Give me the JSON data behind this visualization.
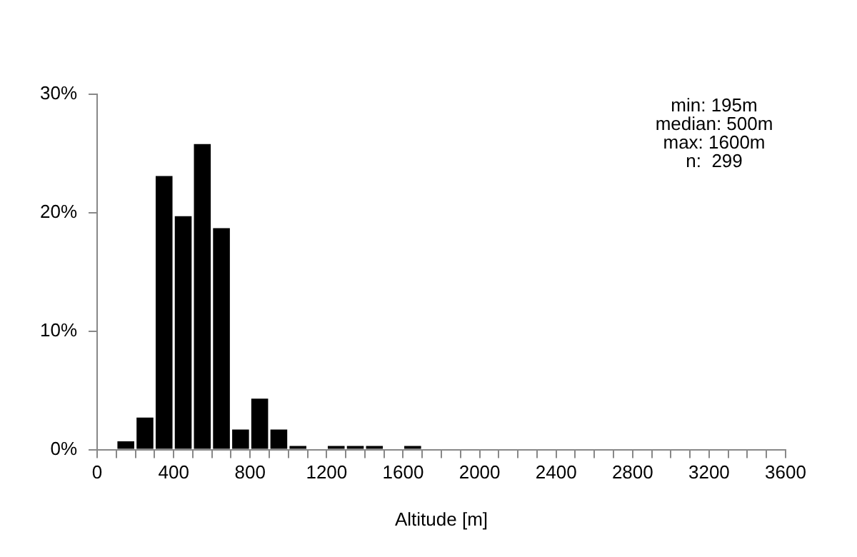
{
  "chart_data": {
    "type": "histogram",
    "xlabel": "Altitude [m]",
    "bins": [
      0,
      100,
      200,
      300,
      400,
      500,
      600,
      700,
      800,
      900,
      1000,
      1100,
      1200,
      1300,
      1400,
      1500,
      1600,
      1700,
      1800,
      1900,
      2000,
      2100,
      2200,
      2300,
      2400,
      2500,
      2600,
      2700,
      2800,
      2900,
      3000,
      3100,
      3200,
      3300,
      3400,
      3500,
      3600
    ],
    "values": [
      0,
      0.7,
      2.7,
      23.1,
      19.7,
      25.8,
      18.7,
      1.7,
      4.3,
      1.7,
      0.3,
      0,
      0.3,
      0.3,
      0.3,
      0,
      0.3,
      0,
      0,
      0,
      0,
      0,
      0,
      0,
      0,
      0,
      0,
      0,
      0,
      0,
      0,
      0,
      0,
      0,
      0,
      0
    ],
    "color": "#000000",
    "xlim": [
      0,
      3600
    ],
    "xticks": [
      0,
      {
        "value": 100,
        "label": null
      },
      {
        "value": 200,
        "label": null
      },
      {
        "value": 300,
        "label": null
      },
      400,
      {
        "value": 500,
        "label": null
      },
      {
        "value": 600,
        "label": null
      },
      {
        "value": 700,
        "label": null
      },
      800,
      {
        "value": 900,
        "label": null
      },
      {
        "value": 1000,
        "label": null
      },
      {
        "value": 1100,
        "label": null
      },
      1200,
      {
        "value": 1300,
        "label": null
      },
      {
        "value": 1400,
        "label": null
      },
      {
        "value": 1500,
        "label": null
      },
      1600,
      {
        "value": 1700,
        "label": null
      },
      {
        "value": 1800,
        "label": null
      },
      {
        "value": 1900,
        "label": null
      },
      2000,
      {
        "value": 2100,
        "label": null
      },
      {
        "value": 2200,
        "label": null
      },
      {
        "value": 2300,
        "label": null
      },
      2400,
      {
        "value": 2500,
        "label": null
      },
      {
        "value": 2600,
        "label": null
      },
      {
        "value": 2700,
        "label": null
      },
      2800,
      {
        "value": 2900,
        "label": null
      },
      {
        "value": 3000,
        "label": null
      },
      {
        "value": 3100,
        "label": null
      },
      3200,
      {
        "value": 3300,
        "label": null
      },
      {
        "value": 3400,
        "label": null
      },
      {
        "value": 3500,
        "label": null
      },
      3600
    ],
    "ylim": [
      0,
      30
    ],
    "yticks": [
      {
        "value": 0,
        "label": "0%"
      },
      {
        "value": 10,
        "label": "10%"
      },
      {
        "value": 20,
        "label": "20%"
      },
      {
        "value": 30,
        "label": "30%"
      }
    ],
    "grid": false,
    "legend": false,
    "annotations": [
      "min: 195m",
      "median: 500m",
      "max: 1600m",
      "n:  299"
    ]
  }
}
